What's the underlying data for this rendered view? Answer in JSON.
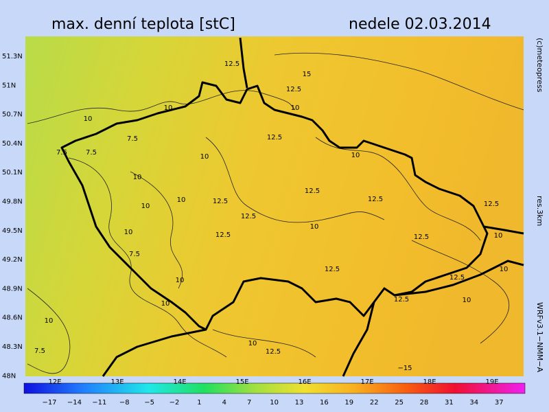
{
  "header": {
    "title": "max. denní teplota [stC]",
    "date": "nedele 02.03.2014"
  },
  "map": {
    "lat_labels": [
      "51.3N",
      "51N",
      "50.7N",
      "50.4N",
      "50.1N",
      "49.8N",
      "49.5N",
      "49.2N",
      "48.9N",
      "48.6N",
      "48.3N",
      "48N"
    ],
    "lon_labels": [
      "12E",
      "13E",
      "14E",
      "15E",
      "16E",
      "17E",
      "18E",
      "19E"
    ],
    "contour_labels": [
      "12.5",
      "15",
      "12.5",
      "10",
      "10",
      "10",
      "7.5",
      "7.5",
      "7.5",
      "12.5",
      "10",
      "10",
      "10",
      "10",
      "10",
      "12.5",
      "12.5",
      "12.5",
      "10",
      "10",
      "7.5",
      "12.5",
      "10",
      "10",
      "12.5",
      "12.5",
      "12.5",
      "10",
      "12.5",
      "12.5",
      "10",
      "10",
      "12.5",
      "7.5",
      "10",
      "12.5",
      "10",
      "−15"
    ]
  },
  "side": {
    "copyright": "(c)meteopress",
    "resolution": "res.3km",
    "model": "WRFv3.1−NMM−A"
  },
  "colorbar": {
    "labels": [
      "−17",
      "−14",
      "−11",
      "−8",
      "−5",
      "−2",
      "1",
      "4",
      "7",
      "10",
      "13",
      "16",
      "19",
      "22",
      "25",
      "28",
      "31",
      "34",
      "37"
    ]
  }
}
